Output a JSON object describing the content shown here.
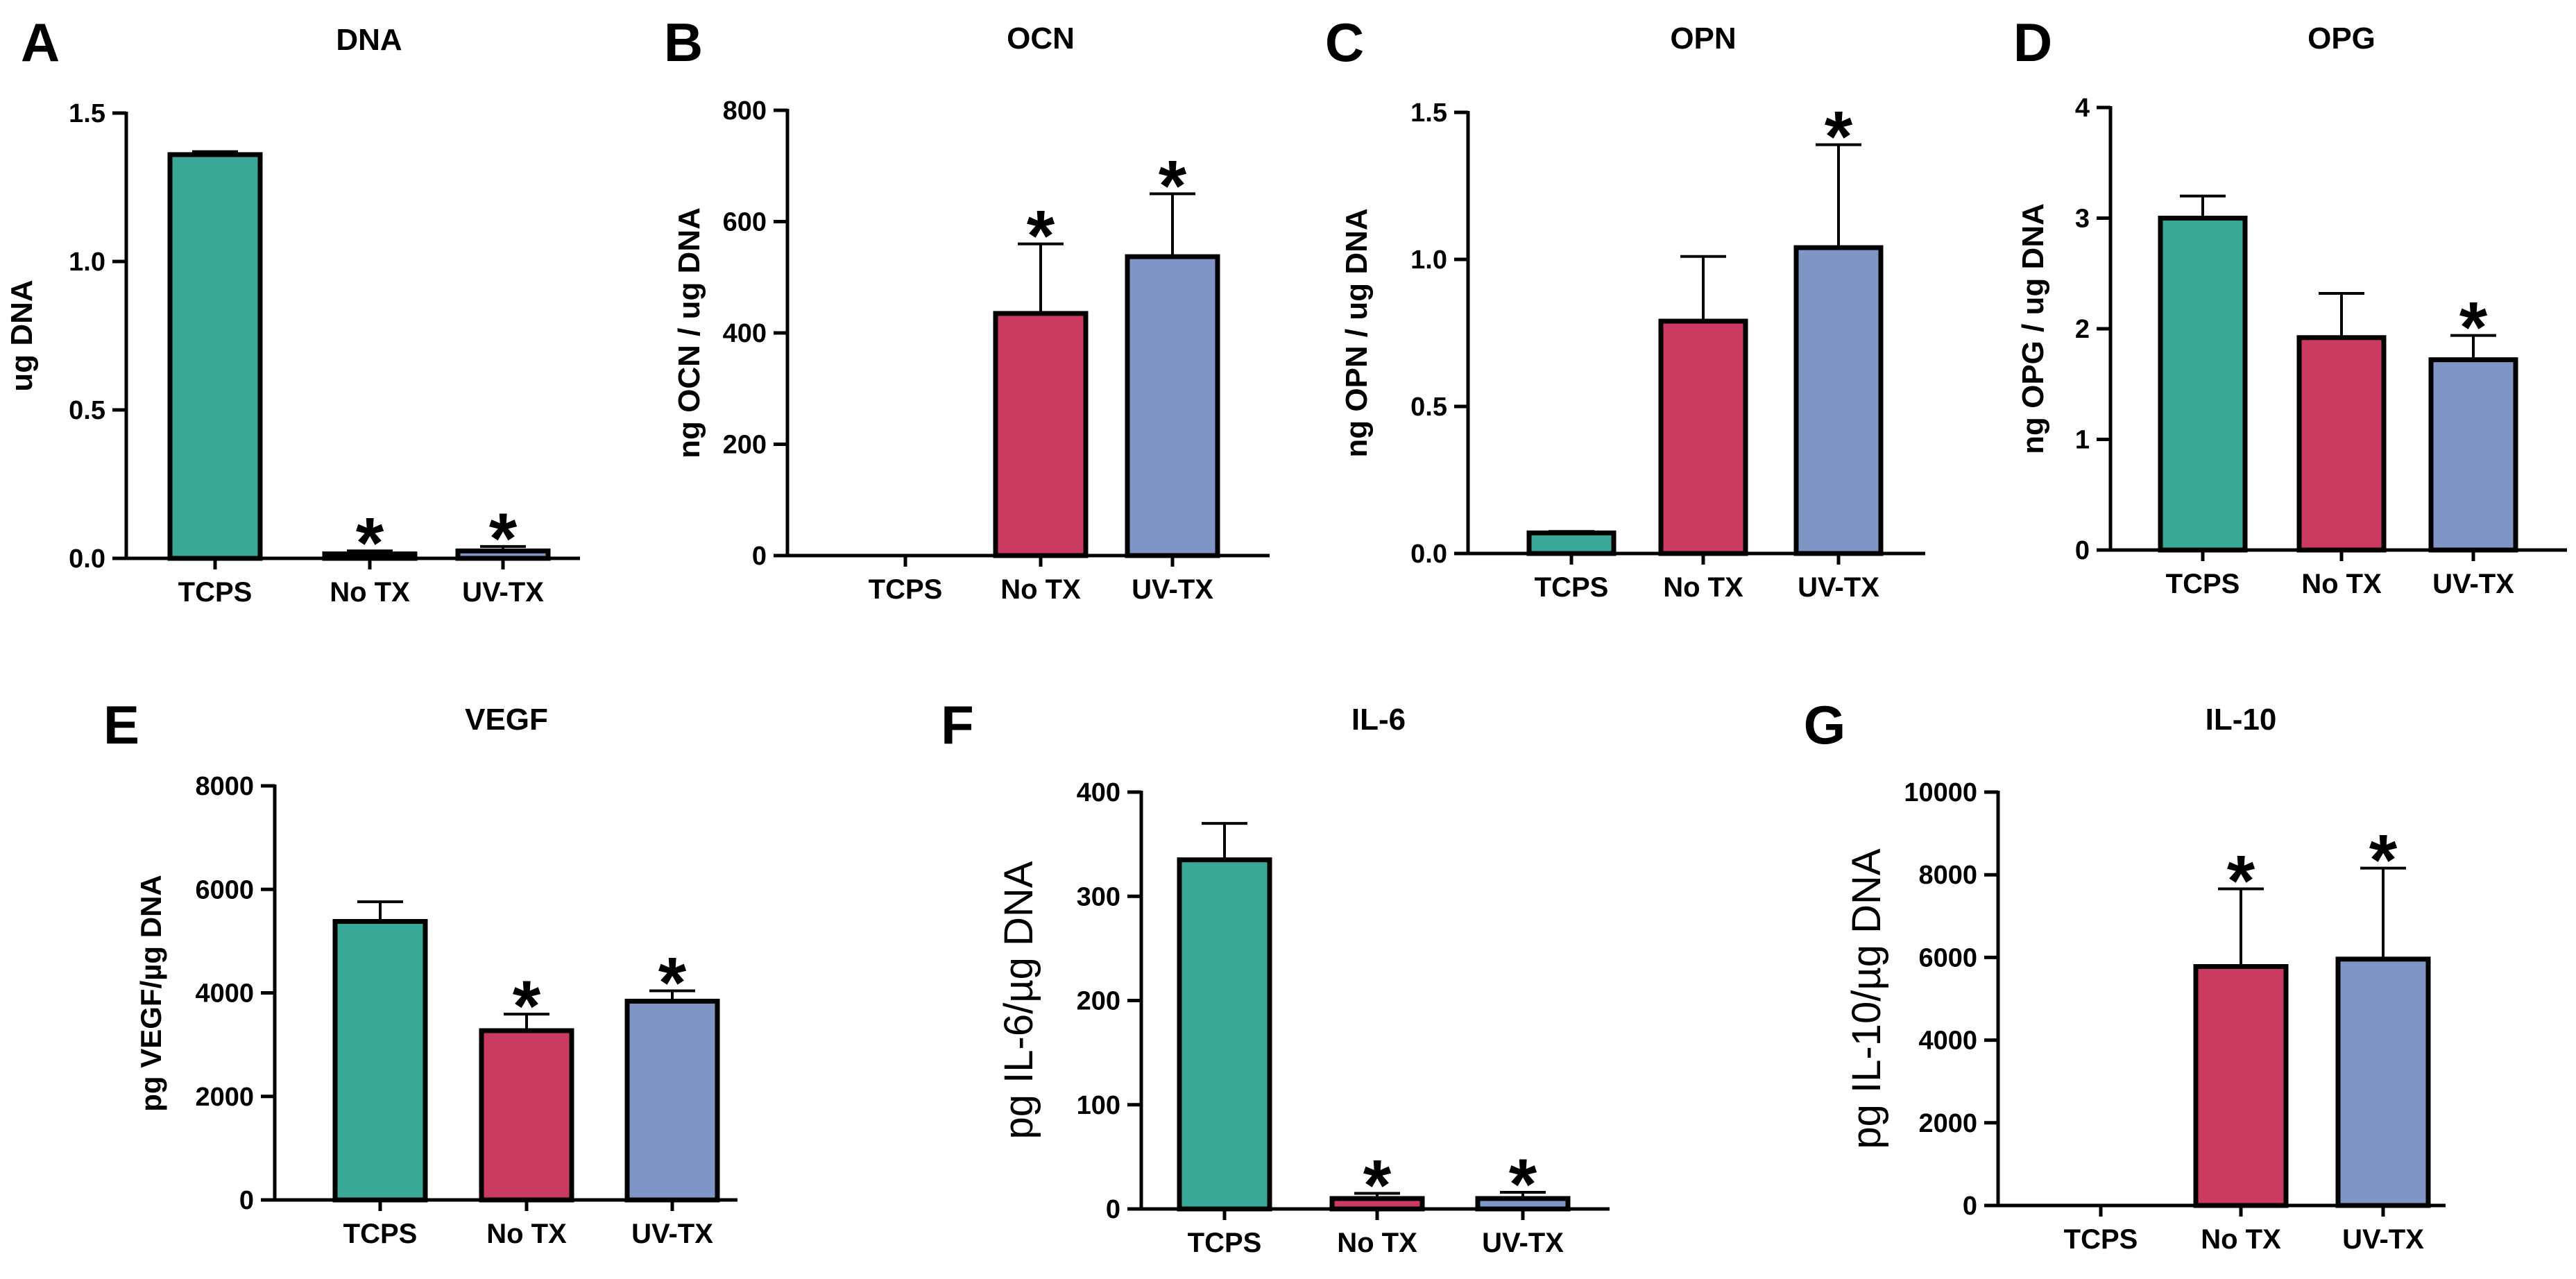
{
  "colors": {
    "TCPS": "#3aa897",
    "No TX": "#cb3a60",
    "UV-TX": "#7e95c6"
  },
  "chart_data": [
    {
      "type": "bar",
      "id": "A",
      "letter": "A",
      "title": "DNA",
      "ylabel": "ug DNA",
      "ylim": [
        0,
        1.5
      ],
      "yticks": [
        0.0,
        0.5,
        1.0,
        1.5
      ],
      "ytick_labels": [
        "0.0",
        "0.5",
        "1.0",
        "1.5"
      ],
      "categories": [
        "TCPS",
        "No TX",
        "UV-TX"
      ],
      "values": [
        1.36,
        0.015,
        0.025
      ],
      "errors": [
        0.01,
        0.01,
        0.015
      ],
      "significant": [
        false,
        true,
        true
      ]
    },
    {
      "type": "bar",
      "id": "B",
      "letter": "B",
      "title": "OCN",
      "ylabel": "ng OCN / ug DNA",
      "ylim": [
        0,
        800
      ],
      "yticks": [
        0,
        200,
        400,
        600,
        800
      ],
      "ytick_labels": [
        "0",
        "200",
        "400",
        "600",
        "800"
      ],
      "categories": [
        "TCPS",
        "No TX",
        "UV-TX"
      ],
      "values": [
        0,
        435,
        537
      ],
      "errors": [
        0,
        125,
        113
      ],
      "significant": [
        false,
        true,
        true
      ]
    },
    {
      "type": "bar",
      "id": "C",
      "letter": "C",
      "title": "OPN",
      "ylabel": "ng OPN / ug DNA",
      "ylim": [
        0,
        1.5
      ],
      "yticks": [
        0.0,
        0.5,
        1.0,
        1.5
      ],
      "ytick_labels": [
        "0.0",
        "0.5",
        "1.0",
        "1.5"
      ],
      "categories": [
        "TCPS",
        "No TX",
        "UV-TX"
      ],
      "values": [
        0.07,
        0.79,
        1.04
      ],
      "errors": [
        0.005,
        0.22,
        0.35
      ],
      "significant": [
        false,
        false,
        true
      ]
    },
    {
      "type": "bar",
      "id": "D",
      "letter": "D",
      "title": "OPG",
      "ylabel": "ng OPG / ug DNA",
      "ylim": [
        0,
        4
      ],
      "yticks": [
        0,
        1,
        2,
        3,
        4
      ],
      "ytick_labels": [
        "0",
        "1",
        "2",
        "3",
        "4"
      ],
      "categories": [
        "TCPS",
        "No TX",
        "UV-TX"
      ],
      "values": [
        3.0,
        1.92,
        1.72
      ],
      "errors": [
        0.2,
        0.4,
        0.22
      ],
      "significant": [
        false,
        false,
        true
      ]
    },
    {
      "type": "bar",
      "id": "E",
      "letter": "E",
      "title": "VEGF",
      "ylabel": "pg VEGF/µg DNA",
      "ylim": [
        0,
        8000
      ],
      "yticks": [
        0,
        2000,
        4000,
        6000,
        8000
      ],
      "ytick_labels": [
        "0",
        "2000",
        "4000",
        "6000",
        "8000"
      ],
      "categories": [
        "TCPS",
        "No TX",
        "UV-TX"
      ],
      "values": [
        5380,
        3270,
        3840
      ],
      "errors": [
        380,
        320,
        200
      ],
      "significant": [
        false,
        true,
        true
      ]
    },
    {
      "type": "bar",
      "id": "F",
      "letter": "F",
      "title": "IL-6",
      "ylabel": "pg IL-6/µg DNA",
      "ylim": [
        0,
        400
      ],
      "yticks": [
        0,
        100,
        200,
        300,
        400
      ],
      "ytick_labels": [
        "0",
        "100",
        "200",
        "300",
        "400"
      ],
      "categories": [
        "TCPS",
        "No TX",
        "UV-TX"
      ],
      "values": [
        335,
        10,
        10
      ],
      "errors": [
        35,
        5,
        6
      ],
      "significant": [
        false,
        true,
        true
      ]
    },
    {
      "type": "bar",
      "id": "G",
      "letter": "G",
      "title": "IL-10",
      "ylabel": "pg IL-10/µg DNA",
      "ylim": [
        0,
        10000
      ],
      "yticks": [
        0,
        2000,
        4000,
        6000,
        8000,
        10000
      ],
      "ytick_labels": [
        "0",
        "2000",
        "4000",
        "6000",
        "8000",
        "10000"
      ],
      "categories": [
        "TCPS",
        "No TX",
        "UV-TX"
      ],
      "values": [
        0,
        5780,
        5960
      ],
      "errors": [
        0,
        1880,
        2200
      ],
      "significant": [
        false,
        true,
        true
      ]
    }
  ]
}
